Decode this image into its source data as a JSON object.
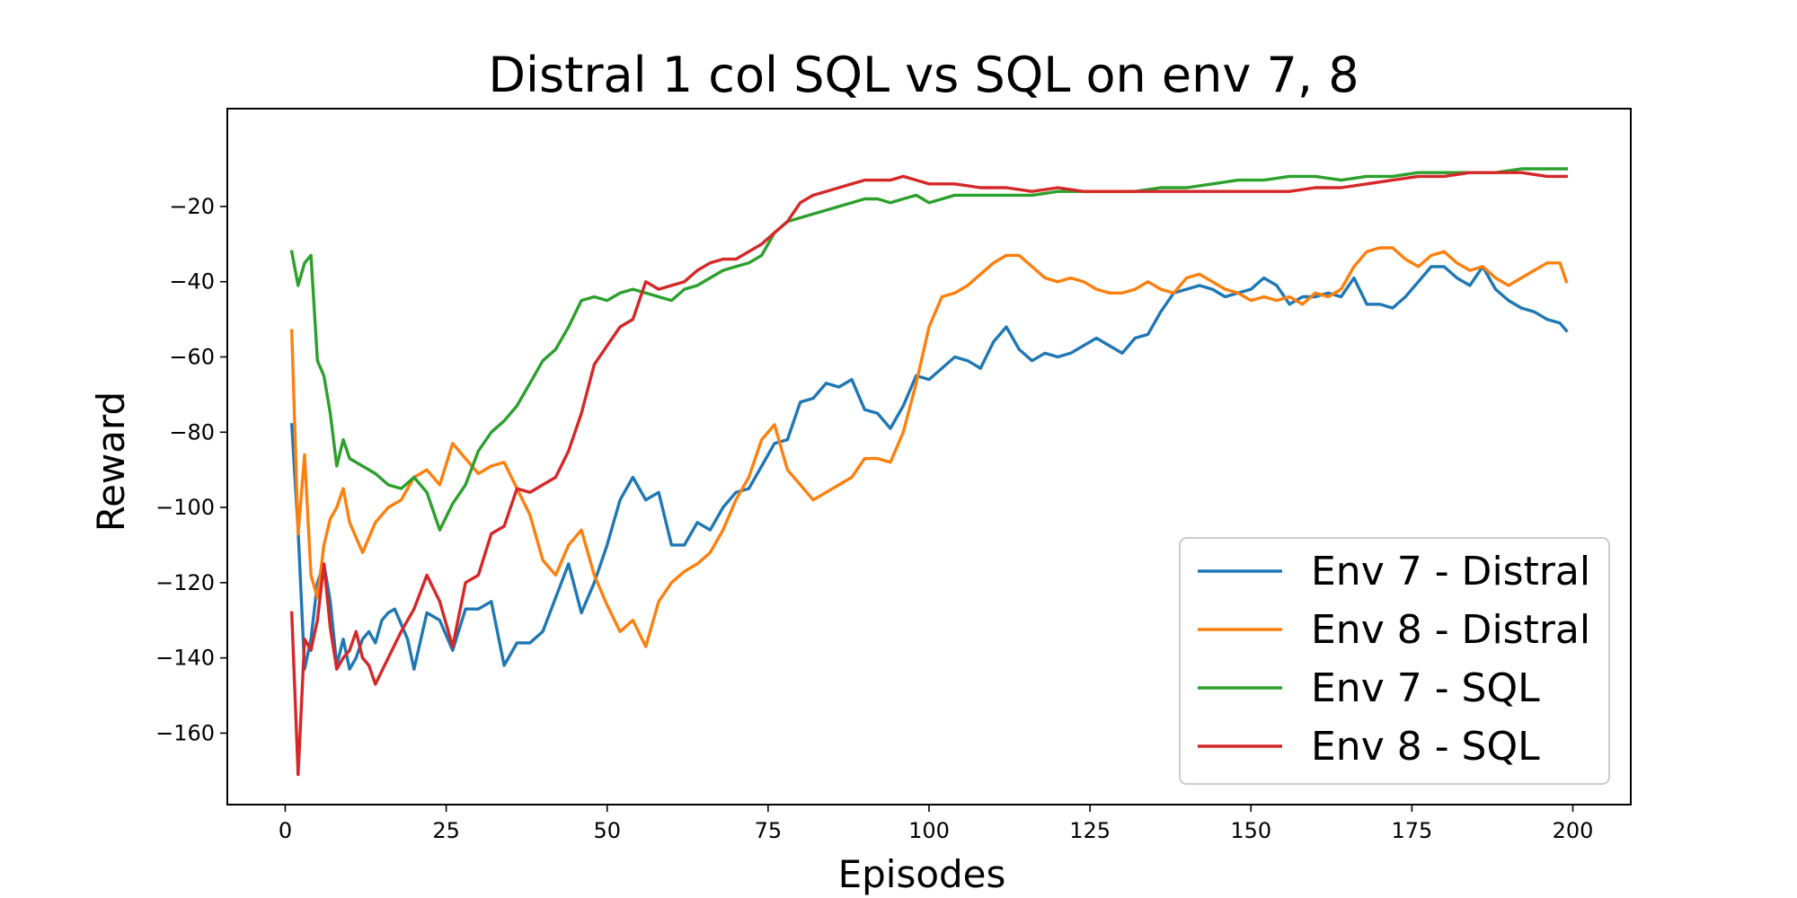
{
  "chart_data": {
    "type": "line",
    "title": "Distral 1 col SQL vs SQL on env 7, 8",
    "xlabel": "Episodes",
    "ylabel": "Reward",
    "xlim": [
      -9,
      209
    ],
    "ylim": [
      -179,
      6
    ],
    "xticks": [
      0,
      25,
      50,
      75,
      100,
      125,
      150,
      175,
      200
    ],
    "yticks": [
      -160,
      -140,
      -120,
      -100,
      -80,
      -60,
      -40,
      -20
    ],
    "legend_position": "lower-right",
    "grid": false,
    "series": [
      {
        "name": "Env 7 - Distral",
        "color": "#1f77b4",
        "x": [
          1,
          2,
          3,
          4,
          5,
          6,
          7,
          8,
          9,
          10,
          11,
          12,
          13,
          14,
          15,
          16,
          17,
          18,
          19,
          20,
          22,
          24,
          26,
          28,
          30,
          32,
          34,
          36,
          38,
          40,
          42,
          44,
          46,
          48,
          50,
          52,
          54,
          56,
          58,
          60,
          62,
          64,
          66,
          68,
          70,
          72,
          74,
          76,
          78,
          80,
          82,
          84,
          86,
          88,
          90,
          92,
          94,
          96,
          98,
          100,
          102,
          104,
          106,
          108,
          110,
          112,
          114,
          116,
          118,
          120,
          122,
          124,
          126,
          128,
          130,
          132,
          134,
          136,
          138,
          140,
          142,
          144,
          146,
          148,
          150,
          152,
          154,
          156,
          158,
          160,
          162,
          164,
          166,
          168,
          170,
          172,
          174,
          176,
          178,
          180,
          182,
          184,
          186,
          188,
          190,
          192,
          194,
          196,
          198,
          199
        ],
        "y": [
          -78,
          -106,
          -143,
          -135,
          -120,
          -115,
          -125,
          -142,
          -135,
          -143,
          -140,
          -135,
          -133,
          -136,
          -130,
          -128,
          -127,
          -131,
          -135,
          -143,
          -128,
          -130,
          -138,
          -127,
          -127,
          -125,
          -142,
          -136,
          -136,
          -133,
          -124,
          -115,
          -128,
          -120,
          -110,
          -98,
          -92,
          -98,
          -96,
          -110,
          -110,
          -104,
          -106,
          -100,
          -96,
          -95,
          -89,
          -83,
          -82,
          -72,
          -71,
          -67,
          -68,
          -66,
          -74,
          -75,
          -79,
          -73,
          -65,
          -66,
          -63,
          -60,
          -61,
          -63,
          -56,
          -52,
          -58,
          -61,
          -59,
          -60,
          -59,
          -57,
          -55,
          -57,
          -59,
          -55,
          -54,
          -48,
          -43,
          -42,
          -41,
          -42,
          -44,
          -43,
          -42,
          -39,
          -41,
          -46,
          -44,
          -44,
          -43,
          -44,
          -39,
          -46,
          -46,
          -47,
          -44,
          -40,
          -36,
          -36,
          -39,
          -41,
          -36,
          -42,
          -45,
          -47,
          -48,
          -50,
          -51,
          -53
        ]
      },
      {
        "name": "Env 8 - Distral",
        "color": "#ff7f0e",
        "x": [
          1,
          2,
          3,
          4,
          5,
          6,
          7,
          8,
          9,
          10,
          12,
          14,
          16,
          18,
          20,
          22,
          24,
          26,
          28,
          30,
          32,
          34,
          36,
          38,
          40,
          42,
          44,
          46,
          48,
          50,
          52,
          54,
          56,
          58,
          60,
          62,
          64,
          66,
          68,
          70,
          72,
          74,
          76,
          78,
          80,
          82,
          84,
          86,
          88,
          90,
          92,
          94,
          96,
          98,
          100,
          102,
          104,
          106,
          108,
          110,
          112,
          114,
          116,
          118,
          120,
          122,
          124,
          126,
          128,
          130,
          132,
          134,
          136,
          138,
          140,
          142,
          144,
          146,
          148,
          150,
          152,
          154,
          156,
          158,
          160,
          162,
          164,
          166,
          168,
          170,
          172,
          174,
          176,
          178,
          180,
          182,
          184,
          186,
          188,
          190,
          192,
          194,
          196,
          198,
          199
        ],
        "y": [
          -53,
          -107,
          -86,
          -118,
          -124,
          -110,
          -103,
          -100,
          -95,
          -104,
          -112,
          -104,
          -100,
          -98,
          -92,
          -90,
          -94,
          -83,
          -87,
          -91,
          -89,
          -88,
          -95,
          -102,
          -114,
          -118,
          -110,
          -106,
          -118,
          -126,
          -133,
          -130,
          -137,
          -125,
          -120,
          -117,
          -115,
          -112,
          -106,
          -98,
          -92,
          -82,
          -78,
          -90,
          -94,
          -98,
          -96,
          -94,
          -92,
          -87,
          -87,
          -88,
          -80,
          -67,
          -52,
          -44,
          -43,
          -41,
          -38,
          -35,
          -33,
          -33,
          -36,
          -39,
          -40,
          -39,
          -40,
          -42,
          -43,
          -43,
          -42,
          -40,
          -42,
          -43,
          -39,
          -38,
          -40,
          -42,
          -43,
          -45,
          -44,
          -45,
          -44,
          -46,
          -43,
          -44,
          -42,
          -36,
          -32,
          -31,
          -31,
          -34,
          -36,
          -33,
          -32,
          -35,
          -37,
          -36,
          -39,
          -41,
          -39,
          -37,
          -35,
          -35,
          -40
        ]
      },
      {
        "name": "Env 7 - SQL",
        "color": "#2ca02c",
        "x": [
          1,
          2,
          3,
          4,
          5,
          6,
          7,
          8,
          9,
          10,
          12,
          14,
          16,
          18,
          20,
          22,
          24,
          26,
          28,
          30,
          32,
          34,
          36,
          38,
          40,
          42,
          44,
          46,
          48,
          50,
          52,
          54,
          56,
          58,
          60,
          62,
          64,
          66,
          68,
          70,
          72,
          74,
          76,
          78,
          80,
          82,
          84,
          86,
          88,
          90,
          92,
          94,
          96,
          98,
          100,
          104,
          108,
          112,
          116,
          120,
          124,
          128,
          132,
          136,
          140,
          144,
          148,
          152,
          156,
          160,
          164,
          168,
          172,
          176,
          180,
          184,
          188,
          192,
          196,
          199
        ],
        "y": [
          -32,
          -41,
          -35,
          -33,
          -61,
          -65,
          -75,
          -89,
          -82,
          -87,
          -89,
          -91,
          -94,
          -95,
          -92,
          -96,
          -106,
          -99,
          -94,
          -85,
          -80,
          -77,
          -73,
          -67,
          -61,
          -58,
          -52,
          -45,
          -44,
          -45,
          -43,
          -42,
          -43,
          -44,
          -45,
          -42,
          -41,
          -39,
          -37,
          -36,
          -35,
          -33,
          -27,
          -24,
          -23,
          -22,
          -21,
          -20,
          -19,
          -18,
          -18,
          -19,
          -18,
          -17,
          -19,
          -17,
          -17,
          -17,
          -17,
          -16,
          -16,
          -16,
          -16,
          -15,
          -15,
          -14,
          -13,
          -13,
          -12,
          -12,
          -13,
          -12,
          -12,
          -11,
          -11,
          -11,
          -11,
          -10,
          -10,
          -10
        ]
      },
      {
        "name": "Env 8 - SQL",
        "color": "#d62728",
        "x": [
          1,
          2,
          3,
          4,
          5,
          6,
          7,
          8,
          9,
          10,
          11,
          12,
          13,
          14,
          16,
          18,
          20,
          22,
          24,
          26,
          28,
          30,
          32,
          34,
          36,
          38,
          40,
          42,
          44,
          46,
          48,
          50,
          52,
          54,
          56,
          58,
          60,
          62,
          64,
          66,
          68,
          70,
          72,
          74,
          76,
          78,
          80,
          82,
          84,
          86,
          88,
          90,
          92,
          94,
          96,
          98,
          100,
          104,
          108,
          112,
          116,
          120,
          124,
          128,
          132,
          136,
          140,
          144,
          148,
          152,
          156,
          160,
          164,
          168,
          172,
          176,
          180,
          184,
          188,
          192,
          196,
          199
        ],
        "y": [
          -128,
          -171,
          -135,
          -138,
          -130,
          -115,
          -132,
          -143,
          -140,
          -138,
          -133,
          -140,
          -142,
          -147,
          -140,
          -133,
          -127,
          -118,
          -125,
          -137,
          -120,
          -118,
          -107,
          -105,
          -95,
          -96,
          -94,
          -92,
          -85,
          -75,
          -62,
          -57,
          -52,
          -50,
          -40,
          -42,
          -41,
          -40,
          -37,
          -35,
          -34,
          -34,
          -32,
          -30,
          -27,
          -24,
          -19,
          -17,
          -16,
          -15,
          -14,
          -13,
          -13,
          -13,
          -12,
          -13,
          -14,
          -14,
          -15,
          -15,
          -16,
          -15,
          -16,
          -16,
          -16,
          -16,
          -16,
          -16,
          -16,
          -16,
          -16,
          -15,
          -15,
          -14,
          -13,
          -12,
          -12,
          -11,
          -11,
          -11,
          -12,
          -12
        ]
      }
    ]
  }
}
